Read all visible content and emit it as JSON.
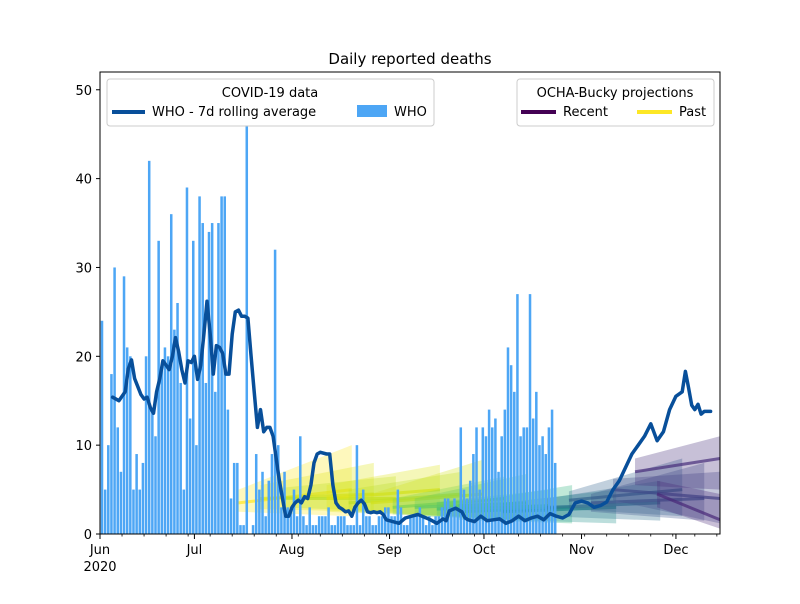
{
  "chart_data": {
    "type": "bar",
    "title": "Daily reported deaths",
    "xlabel": "",
    "ylabel": "",
    "x_start": "2020-06-01",
    "x_end": "2020-12-15",
    "ylim": [
      0,
      52
    ],
    "yticks": [
      0,
      10,
      20,
      30,
      40,
      50
    ],
    "xticks": [
      {
        "label": "Jun",
        "date": "2020-06-01",
        "year": "2020"
      },
      {
        "label": "Jul",
        "date": "2020-07-01"
      },
      {
        "label": "Aug",
        "date": "2020-08-01"
      },
      {
        "label": "Sep",
        "date": "2020-09-01"
      },
      {
        "label": "Oct",
        "date": "2020-10-01"
      },
      {
        "label": "Nov",
        "date": "2020-11-01"
      },
      {
        "label": "Dec",
        "date": "2020-12-01"
      }
    ],
    "grid": false,
    "who_daily": {
      "name": "WHO",
      "color": "#4da6f5",
      "values": [
        24,
        5,
        10,
        18,
        30,
        12,
        7,
        29,
        21,
        20,
        5,
        9,
        5,
        8,
        20,
        42,
        14,
        11,
        33,
        19,
        21,
        20,
        36,
        23,
        26,
        17,
        5,
        39,
        13,
        33,
        10,
        38,
        35,
        17,
        34,
        35,
        16,
        35,
        38,
        38,
        14,
        4,
        8,
        8,
        1,
        1,
        1,
        0,
        1,
        9,
        5,
        7,
        2,
        6,
        9,
        32,
        10,
        3,
        7,
        3,
        3,
        5,
        2,
        11,
        2,
        1,
        3,
        1,
        1,
        2,
        2,
        2,
        3,
        1,
        1,
        2,
        2,
        2,
        1,
        1,
        1,
        10,
        1,
        5,
        2,
        2,
        1,
        1,
        2,
        2,
        3,
        3,
        2,
        2,
        5,
        3,
        1,
        1,
        2,
        2,
        2,
        3,
        2,
        1,
        2,
        1,
        2,
        2,
        3,
        4,
        4,
        3,
        4,
        3,
        12,
        5,
        4,
        6,
        9,
        12,
        5,
        12,
        11,
        14,
        12,
        13,
        7,
        11,
        14,
        21,
        19,
        16,
        27,
        11,
        12,
        12,
        27,
        13,
        16,
        10,
        11,
        9,
        12,
        14,
        8
      ],
      "outliers": {
        "46": 46
      }
    },
    "who_7d_avg": {
      "name": "WHO - 7d rolling average",
      "color": "#084f9a",
      "points": [
        [
          "2020-06-05",
          15.4
        ],
        [
          "2020-06-07",
          15.0
        ],
        [
          "2020-06-09",
          16.0
        ],
        [
          "2020-06-10",
          18.6
        ],
        [
          "2020-06-11",
          19.6
        ],
        [
          "2020-06-12",
          17.5
        ],
        [
          "2020-06-14",
          15.7
        ],
        [
          "2020-06-15",
          15.2
        ],
        [
          "2020-06-16",
          15.4
        ],
        [
          "2020-06-17",
          14.2
        ],
        [
          "2020-06-18",
          13.6
        ],
        [
          "2020-06-19",
          16.0
        ],
        [
          "2020-06-20",
          17.5
        ],
        [
          "2020-06-21",
          19.5
        ],
        [
          "2020-06-22",
          19.0
        ],
        [
          "2020-06-23",
          18.5
        ],
        [
          "2020-06-24",
          20.0
        ],
        [
          "2020-06-25",
          22.1
        ],
        [
          "2020-06-26",
          20.5
        ],
        [
          "2020-06-27",
          18.5
        ],
        [
          "2020-06-28",
          17.0
        ],
        [
          "2020-06-29",
          19.5
        ],
        [
          "2020-06-30",
          19.3
        ],
        [
          "2020-07-01",
          20.0
        ],
        [
          "2020-07-02",
          17.4
        ],
        [
          "2020-07-03",
          19.0
        ],
        [
          "2020-07-04",
          22.5
        ],
        [
          "2020-07-05",
          26.2
        ],
        [
          "2020-07-06",
          22.5
        ],
        [
          "2020-07-07",
          18.0
        ],
        [
          "2020-07-08",
          21.2
        ],
        [
          "2020-07-09",
          21.0
        ],
        [
          "2020-07-10",
          20.3
        ],
        [
          "2020-07-11",
          18.0
        ],
        [
          "2020-07-12",
          18.0
        ],
        [
          "2020-07-13",
          22.5
        ],
        [
          "2020-07-14",
          25.0
        ],
        [
          "2020-07-15",
          25.2
        ],
        [
          "2020-07-16",
          24.5
        ],
        [
          "2020-07-17",
          24.5
        ],
        [
          "2020-07-18",
          24.3
        ],
        [
          "2020-07-19",
          20.0
        ],
        [
          "2020-07-20",
          16.0
        ],
        [
          "2020-07-21",
          12.0
        ],
        [
          "2020-07-22",
          14.0
        ],
        [
          "2020-07-23",
          11.5
        ],
        [
          "2020-07-24",
          12.0
        ],
        [
          "2020-07-25",
          12.0
        ],
        [
          "2020-07-26",
          11.0
        ],
        [
          "2020-07-27",
          8.5
        ],
        [
          "2020-07-28",
          6.0
        ],
        [
          "2020-07-29",
          4.0
        ],
        [
          "2020-07-30",
          2.0
        ],
        [
          "2020-07-31",
          2.0
        ],
        [
          "2020-08-01",
          3.0
        ],
        [
          "2020-08-02",
          3.5
        ],
        [
          "2020-08-03",
          3.8
        ],
        [
          "2020-08-04",
          3.5
        ],
        [
          "2020-08-05",
          4.2
        ],
        [
          "2020-08-06",
          4.0
        ],
        [
          "2020-08-07",
          5.5
        ],
        [
          "2020-08-08",
          8.0
        ],
        [
          "2020-08-09",
          9.0
        ],
        [
          "2020-08-10",
          9.2
        ],
        [
          "2020-08-12",
          9.0
        ],
        [
          "2020-08-13",
          9.0
        ],
        [
          "2020-08-14",
          5.5
        ],
        [
          "2020-08-15",
          3.5
        ],
        [
          "2020-08-16",
          3.0
        ],
        [
          "2020-08-17",
          2.8
        ],
        [
          "2020-08-18",
          2.5
        ],
        [
          "2020-08-19",
          2.6
        ],
        [
          "2020-08-20",
          2.0
        ],
        [
          "2020-08-21",
          3.0
        ],
        [
          "2020-08-22",
          3.5
        ],
        [
          "2020-08-23",
          3.8
        ],
        [
          "2020-08-24",
          3.4
        ],
        [
          "2020-08-25",
          2.5
        ],
        [
          "2020-08-26",
          2.4
        ],
        [
          "2020-08-27",
          2.5
        ],
        [
          "2020-08-28",
          2.4
        ],
        [
          "2020-08-29",
          2.5
        ],
        [
          "2020-08-30",
          2.2
        ],
        [
          "2020-08-31",
          1.6
        ],
        [
          "2020-09-02",
          1.4
        ],
        [
          "2020-09-04",
          1.2
        ],
        [
          "2020-09-06",
          1.8
        ],
        [
          "2020-09-08",
          2.0
        ],
        [
          "2020-09-10",
          2.2
        ],
        [
          "2020-09-12",
          1.9
        ],
        [
          "2020-09-14",
          1.6
        ],
        [
          "2020-09-16",
          1.2
        ],
        [
          "2020-09-18",
          1.7
        ],
        [
          "2020-09-19",
          1.5
        ],
        [
          "2020-09-20",
          2.6
        ],
        [
          "2020-09-22",
          2.9
        ],
        [
          "2020-09-24",
          2.5
        ],
        [
          "2020-09-25",
          1.8
        ],
        [
          "2020-09-26",
          1.6
        ],
        [
          "2020-09-28",
          1.4
        ],
        [
          "2020-09-30",
          2.0
        ],
        [
          "2020-10-02",
          1.5
        ],
        [
          "2020-10-04",
          1.6
        ],
        [
          "2020-10-06",
          1.7
        ],
        [
          "2020-10-08",
          1.2
        ],
        [
          "2020-10-10",
          1.5
        ],
        [
          "2020-10-12",
          2.0
        ],
        [
          "2020-10-14",
          1.5
        ],
        [
          "2020-10-16",
          1.8
        ],
        [
          "2020-10-18",
          2.0
        ],
        [
          "2020-10-20",
          1.6
        ],
        [
          "2020-10-22",
          2.3
        ],
        [
          "2020-10-24",
          2.0
        ],
        [
          "2020-10-26",
          1.8
        ],
        [
          "2020-10-28",
          2.2
        ],
        [
          "2020-10-30",
          3.5
        ],
        [
          "2020-11-01",
          3.7
        ],
        [
          "2020-11-03",
          3.5
        ],
        [
          "2020-11-05",
          3.0
        ],
        [
          "2020-11-07",
          3.2
        ],
        [
          "2020-11-09",
          3.6
        ],
        [
          "2020-11-11",
          5.0
        ],
        [
          "2020-11-13",
          6.0
        ],
        [
          "2020-11-15",
          7.5
        ],
        [
          "2020-11-17",
          9.0
        ],
        [
          "2020-11-19",
          10.0
        ],
        [
          "2020-11-21",
          11.0
        ],
        [
          "2020-11-23",
          12.4
        ],
        [
          "2020-11-25",
          10.5
        ],
        [
          "2020-11-27",
          11.5
        ],
        [
          "2020-11-29",
          14.0
        ],
        [
          "2020-12-01",
          15.5
        ],
        [
          "2020-12-03",
          16.0
        ],
        [
          "2020-12-04",
          18.3
        ],
        [
          "2020-12-05",
          16.5
        ],
        [
          "2020-12-06",
          14.5
        ],
        [
          "2020-12-07",
          14.0
        ],
        [
          "2020-12-08",
          14.6
        ],
        [
          "2020-12-09",
          13.5
        ],
        [
          "2020-12-10",
          13.8
        ],
        [
          "2020-12-12",
          13.8
        ]
      ]
    },
    "projections": {
      "title": "OCHA-Bucky projections",
      "recent_label": "Recent",
      "past_label": "Past",
      "recent_color": "#440154",
      "past_color": "#fde725",
      "runs": [
        {
          "start": "2020-07-15",
          "end": "2020-08-20",
          "color": "#fde725",
          "y0": 3.5,
          "y1": 5,
          "lo0": 2.5,
          "hi0": 5,
          "lo1": 2,
          "hi1": 10
        },
        {
          "start": "2020-07-22",
          "end": "2020-08-27",
          "color": "#dde318",
          "y0": 4,
          "y1": 4.5,
          "lo0": 2.8,
          "hi0": 5.5,
          "lo1": 2.5,
          "hi1": 8
        },
        {
          "start": "2020-07-29",
          "end": "2020-09-03",
          "color": "#bade28",
          "y0": 4,
          "y1": 4,
          "lo0": 3,
          "hi0": 5.2,
          "lo1": 2.5,
          "hi1": 6.5
        },
        {
          "start": "2020-08-12",
          "end": "2020-09-17",
          "color": "#dde318",
          "y0": 4,
          "y1": 5,
          "lo0": 2.5,
          "hi0": 5.5,
          "lo1": 2,
          "hi1": 7.8
        },
        {
          "start": "2020-08-19",
          "end": "2020-09-24",
          "color": "#bade28",
          "y0": 3.5,
          "y1": 4.5,
          "lo0": 2.5,
          "hi0": 5,
          "lo1": 2,
          "hi1": 7
        },
        {
          "start": "2020-08-26",
          "end": "2020-10-01",
          "color": "#d1e11c",
          "y0": 3.5,
          "y1": 4.5,
          "lo0": 2.5,
          "hi0": 4.5,
          "lo1": 1.8,
          "hi1": 8.4
        },
        {
          "start": "2020-09-02",
          "end": "2020-10-08",
          "color": "#7ad151",
          "y0": 3,
          "y1": 4,
          "lo0": 2.2,
          "hi0": 4,
          "lo1": 1.8,
          "hi1": 6.5
        },
        {
          "start": "2020-09-09",
          "end": "2020-10-15",
          "color": "#5ec962",
          "y0": 3,
          "y1": 3.5,
          "lo0": 2,
          "hi0": 4,
          "lo1": 1.5,
          "hi1": 6.8
        },
        {
          "start": "2020-09-16",
          "end": "2020-10-22",
          "color": "#44bf70",
          "y0": 2.8,
          "y1": 3.2,
          "lo0": 2,
          "hi0": 3.6,
          "lo1": 1.5,
          "hi1": 5
        },
        {
          "start": "2020-09-23",
          "end": "2020-10-29",
          "color": "#2db27d",
          "y0": 2.5,
          "y1": 3,
          "lo0": 1.6,
          "hi0": 3.4,
          "lo1": 1.2,
          "hi1": 5.5
        },
        {
          "start": "2020-10-07",
          "end": "2020-11-12",
          "color": "#21918c",
          "y0": 2.5,
          "y1": 3,
          "lo0": 1.6,
          "hi0": 3.5,
          "lo1": 1.2,
          "hi1": 5
        },
        {
          "start": "2020-10-21",
          "end": "2020-11-26",
          "color": "#2c728e",
          "y0": 3,
          "y1": 3.5,
          "lo0": 2,
          "hi0": 4,
          "lo1": 1.5,
          "hi1": 6
        },
        {
          "start": "2020-10-28",
          "end": "2020-12-03",
          "color": "#33638d",
          "y0": 3.8,
          "y1": 5,
          "lo0": 2.8,
          "hi0": 4.8,
          "lo1": 2,
          "hi1": 8.5
        },
        {
          "start": "2020-11-04",
          "end": "2020-12-10",
          "color": "#3b528b",
          "y0": 3.5,
          "y1": 4,
          "lo0": 2.5,
          "hi0": 4.5,
          "lo1": 1.5,
          "hi1": 8
        },
        {
          "start": "2020-11-11",
          "end": "2020-12-15",
          "color": "#3e4a89",
          "y0": 5,
          "y1": 4,
          "lo0": 3.8,
          "hi0": 6.2,
          "lo1": 1.2,
          "hi1": 7
        },
        {
          "start": "2020-11-18",
          "end": "2020-12-15",
          "color": "#472d7b",
          "y0": 7,
          "y1": 8.5,
          "lo0": 5.5,
          "hi0": 8.5,
          "lo1": 5,
          "hi1": 11
        },
        {
          "start": "2020-11-25",
          "end": "2020-12-15",
          "color": "#482878",
          "y0": 4.5,
          "y1": 1.6,
          "lo0": 3,
          "hi0": 6,
          "lo1": 0.6,
          "hi1": 4.5
        }
      ]
    },
    "legend_left": {
      "title": "COVID-19 data",
      "avg_label": "WHO - 7d rolling average",
      "bar_label": "WHO",
      "placement": "top-left"
    },
    "legend_right": {
      "placement": "top-right"
    }
  }
}
